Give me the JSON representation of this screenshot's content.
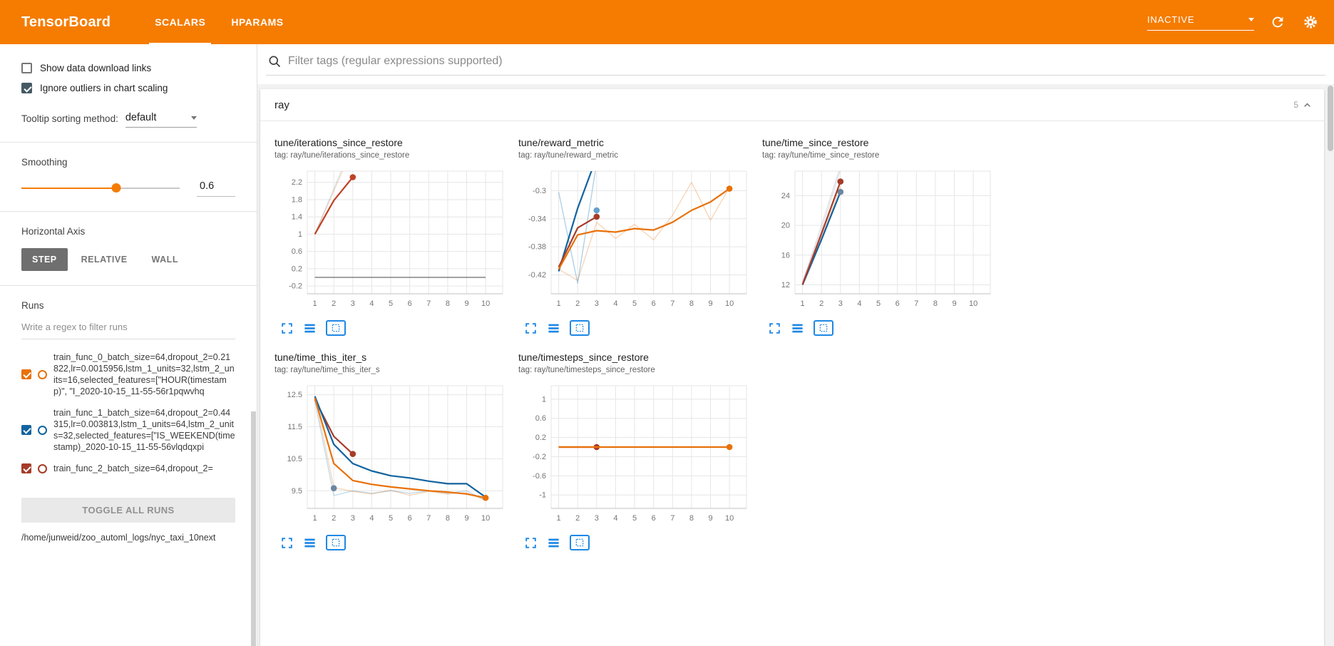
{
  "colors": {
    "header_bg": "#f57c00",
    "chart_icon_blue": "#1e88e5",
    "checkbox_dark": "#455a64"
  },
  "header": {
    "title": "TensorBoard",
    "tabs": [
      {
        "label": "SCALARS",
        "active": true
      },
      {
        "label": "HPARAMS",
        "active": false
      }
    ],
    "status": "INACTIVE",
    "icons": [
      "chevron-down-icon",
      "refresh-icon",
      "settings-icon",
      "help-icon"
    ]
  },
  "sidebar": {
    "show_download_links": {
      "label": "Show data download links",
      "checked": false
    },
    "ignore_outliers": {
      "label": "Ignore outliers in chart scaling",
      "checked": true
    },
    "tooltip_sorting": {
      "label": "Tooltip sorting method:",
      "value": "default"
    },
    "smoothing": {
      "label": "Smoothing",
      "value": "0.6"
    },
    "horizontal_axis": {
      "label": "Horizontal Axis",
      "options": [
        {
          "label": "STEP",
          "selected": true
        },
        {
          "label": "RELATIVE",
          "selected": false
        },
        {
          "label": "WALL",
          "selected": false
        }
      ]
    },
    "runs": {
      "label": "Runs",
      "filter_placeholder": "Write a regex to filter runs",
      "items": [
        {
          "label": "train_func_0_batch_size=64,dropout_2=0.21822,lr=0.0015956,lstm_1_units=32,lstm_2_units=16,selected_features=[\"HOUR(timestamp)\", \"I_2020-10-15_11-55-56r1pqwvhq",
          "checked": true,
          "color": "#e8710a"
        },
        {
          "label": "train_func_1_batch_size=64,dropout_2=0.44315,lr=0.003813,lstm_1_units=64,lstm_2_units=32,selected_features=[\"IS_WEEKEND(timestamp)_2020-10-15_11-55-56vlqdqxpi",
          "checked": true,
          "color": "#12639e"
        },
        {
          "label": "train_func_2_batch_size=64,dropout_2=",
          "checked": true,
          "color": "#a63c28"
        }
      ],
      "toggle_all_label": "TOGGLE ALL RUNS",
      "log_dir": "/home/junweid/zoo_automl_logs/nyc_taxi_10next"
    }
  },
  "main": {
    "tag_filter_placeholder": "Filter tags (regular expressions supported)",
    "category": {
      "title": "ray",
      "count": "5"
    },
    "chart_toolbar_icons": [
      "expand-chart-icon",
      "runs-selector-icon",
      "fit-domain-icon"
    ]
  },
  "chart_data": [
    {
      "type": "line",
      "title": "tune/iterations_since_restore",
      "tag": "tag: ray/tune/iterations_since_restore",
      "xlim": [
        0.6,
        10.9
      ],
      "ylim": [
        -0.38,
        2.46
      ],
      "xticks": [
        1,
        2,
        3,
        4,
        5,
        6,
        7,
        8,
        9,
        10
      ],
      "yticks": [
        -0.2,
        0.2,
        0.6,
        1,
        1.4,
        1.8,
        2.2
      ],
      "series": [
        {
          "color": "#e8710a",
          "opacity": 0.25,
          "width": 1.3,
          "points": [
            [
              1,
              1
            ],
            [
              2,
              2
            ],
            [
              3,
              3
            ]
          ]
        },
        {
          "color": "#12639e",
          "opacity": 0.18,
          "width": 1.3,
          "points": [
            [
              1,
              1
            ],
            [
              2,
              2.05
            ],
            [
              3,
              3.1
            ]
          ]
        },
        {
          "color": "#757575",
          "opacity": 0.9,
          "width": 1.4,
          "points": [
            [
              1,
              0
            ],
            [
              10,
              0
            ]
          ]
        },
        {
          "color": "#bf4126",
          "width": 2.2,
          "points": [
            [
              1,
              1
            ],
            [
              2,
              1.78
            ],
            [
              3,
              2.32
            ]
          ],
          "end_marker": true
        }
      ]
    },
    {
      "type": "line",
      "title": "tune/reward_metric",
      "tag": "tag: ray/tune/reward_metric",
      "xlim": [
        0.6,
        10.9
      ],
      "ylim": [
        -0.447,
        -0.272
      ],
      "xticks": [
        1,
        2,
        3,
        4,
        5,
        6,
        7,
        8,
        9,
        10
      ],
      "yticks": [
        -0.42,
        -0.38,
        -0.34,
        -0.3
      ],
      "series": [
        {
          "color": "#7fb3d9",
          "opacity": 0.65,
          "width": 1.3,
          "points": [
            [
              1,
              -0.302
            ],
            [
              2,
              -0.432
            ],
            [
              3,
              -0.26
            ]
          ]
        },
        {
          "color": "#e8710a",
          "opacity": 0.3,
          "width": 1.3,
          "points": [
            [
              1,
              -0.412
            ],
            [
              2,
              -0.428
            ],
            [
              3,
              -0.345
            ],
            [
              4,
              -0.368
            ],
            [
              5,
              -0.348
            ],
            [
              6,
              -0.37
            ],
            [
              7,
              -0.335
            ],
            [
              8,
              -0.288
            ],
            [
              9,
              -0.342
            ],
            [
              10,
              -0.295
            ]
          ]
        },
        {
          "color": "#12639e",
          "width": 2.2,
          "points": [
            [
              1,
              -0.415
            ],
            [
              2,
              -0.325
            ],
            [
              3,
              -0.252
            ]
          ]
        },
        {
          "color": "#64a0cf",
          "points": [
            [
              3,
              -0.328
            ]
          ],
          "end_marker": true
        },
        {
          "color": "#a63c28",
          "width": 2.2,
          "points": [
            [
              1,
              -0.409
            ],
            [
              2,
              -0.353
            ],
            [
              3,
              -0.337
            ]
          ],
          "end_marker": true
        },
        {
          "color": "#e8710a",
          "width": 2.2,
          "points": [
            [
              1,
              -0.412
            ],
            [
              2,
              -0.363
            ],
            [
              3,
              -0.357
            ],
            [
              4,
              -0.359
            ],
            [
              5,
              -0.354
            ],
            [
              6,
              -0.356
            ],
            [
              7,
              -0.345
            ],
            [
              8,
              -0.328
            ],
            [
              9,
              -0.316
            ],
            [
              10,
              -0.297
            ]
          ],
          "end_marker": true
        }
      ]
    },
    {
      "type": "line",
      "title": "tune/time_since_restore",
      "tag": "tag: ray/tune/time_since_restore",
      "xlim": [
        0.6,
        10.9
      ],
      "ylim": [
        10.8,
        27.3
      ],
      "xticks": [
        1,
        2,
        3,
        4,
        5,
        6,
        7,
        8,
        9,
        10
      ],
      "yticks": [
        12,
        16,
        20,
        24
      ],
      "series": [
        {
          "color": "#9e9e9e",
          "opacity": 0.3,
          "width": 1.3,
          "points": [
            [
              1,
              12.3
            ],
            [
              2,
              20
            ],
            [
              3,
              28
            ]
          ]
        },
        {
          "color": "#b0a6cf",
          "opacity": 0.35,
          "width": 1.3,
          "points": [
            [
              1,
              12.5
            ],
            [
              2,
              19.4
            ],
            [
              3,
              27.5
            ]
          ]
        },
        {
          "color": "#e8710a",
          "opacity": 0.3,
          "width": 1.3,
          "points": [
            [
              1,
              12.1
            ],
            [
              2,
              18.3
            ],
            [
              3,
              25.2
            ]
          ]
        },
        {
          "color": "#12639e",
          "width": 2.2,
          "points": [
            [
              1,
              12.0
            ],
            [
              2,
              18.1
            ],
            [
              3,
              24.5
            ]
          ],
          "end_marker": true,
          "marker_color": "#6b87a0"
        },
        {
          "color": "#a63c28",
          "width": 2.2,
          "points": [
            [
              1,
              12.05
            ],
            [
              2,
              18.9
            ],
            [
              3,
              25.9
            ]
          ],
          "end_marker": true
        }
      ]
    },
    {
      "type": "line",
      "title": "tune/time_this_iter_s",
      "tag": "tag: ray/tune/time_this_iter_s",
      "xlim": [
        0.6,
        10.9
      ],
      "ylim": [
        8.95,
        12.78
      ],
      "xticks": [
        1,
        2,
        3,
        4,
        5,
        6,
        7,
        8,
        9,
        10
      ],
      "yticks": [
        9.5,
        10.5,
        11.5,
        12.5
      ],
      "series": [
        {
          "color": "#7fb3d9",
          "opacity": 0.5,
          "width": 1.3,
          "points": [
            [
              1,
              12.3
            ],
            [
              2,
              9.35
            ],
            [
              3,
              9.5
            ],
            [
              4,
              9.42
            ],
            [
              5,
              9.5
            ],
            [
              6,
              9.42
            ],
            [
              7,
              9.5
            ],
            [
              8,
              9.42
            ],
            [
              9,
              9.5
            ],
            [
              10,
              9.2
            ]
          ]
        },
        {
          "color": "#e8710a",
          "opacity": 0.3,
          "width": 1.3,
          "points": [
            [
              1,
              12.45
            ],
            [
              2,
              9.6
            ],
            [
              3,
              9.48
            ],
            [
              4,
              9.4
            ],
            [
              5,
              9.52
            ],
            [
              6,
              9.36
            ],
            [
              7,
              9.48
            ],
            [
              8,
              9.4
            ],
            [
              9,
              9.44
            ],
            [
              10,
              9.2
            ]
          ]
        },
        {
          "color": "#a63c28",
          "width": 2.2,
          "points": [
            [
              1,
              12.35
            ],
            [
              2,
              11.2
            ],
            [
              3,
              10.65
            ]
          ],
          "end_marker": true
        },
        {
          "color": "#12639e",
          "width": 2.2,
          "points": [
            [
              1,
              12.45
            ],
            [
              2,
              10.95
            ],
            [
              3,
              10.35
            ],
            [
              4,
              10.12
            ],
            [
              5,
              9.97
            ],
            [
              6,
              9.9
            ],
            [
              7,
              9.8
            ],
            [
              8,
              9.72
            ],
            [
              9,
              9.72
            ],
            [
              10,
              9.3
            ]
          ]
        },
        {
          "color": "#6b87a0",
          "points": [
            [
              2,
              9.58
            ]
          ],
          "end_marker": true
        },
        {
          "color": "#e8710a",
          "width": 2.2,
          "points": [
            [
              1,
              12.4
            ],
            [
              2,
              10.35
            ],
            [
              3,
              9.82
            ],
            [
              4,
              9.7
            ],
            [
              5,
              9.62
            ],
            [
              6,
              9.56
            ],
            [
              7,
              9.5
            ],
            [
              8,
              9.46
            ],
            [
              9,
              9.4
            ],
            [
              10,
              9.28
            ]
          ],
          "end_marker": true
        }
      ]
    },
    {
      "type": "line",
      "title": "tune/timesteps_since_restore",
      "tag": "tag: ray/tune/timesteps_since_restore",
      "xlim": [
        0.6,
        10.9
      ],
      "ylim": [
        -1.28,
        1.28
      ],
      "xticks": [
        1,
        2,
        3,
        4,
        5,
        6,
        7,
        8,
        9,
        10
      ],
      "yticks": [
        -1,
        -0.6,
        -0.2,
        0.2,
        0.6,
        1
      ],
      "series": [
        {
          "color": "#757575",
          "opacity": 0.9,
          "width": 1.4,
          "points": [
            [
              1,
              0
            ],
            [
              10,
              0
            ]
          ]
        },
        {
          "color": "#a63c28",
          "width": 2.2,
          "points": [
            [
              1,
              0
            ],
            [
              3,
              0
            ]
          ],
          "end_marker": true
        },
        {
          "color": "#e8710a",
          "width": 2.2,
          "points": [
            [
              1,
              0
            ],
            [
              10,
              0
            ]
          ],
          "end_marker": true
        }
      ]
    }
  ]
}
